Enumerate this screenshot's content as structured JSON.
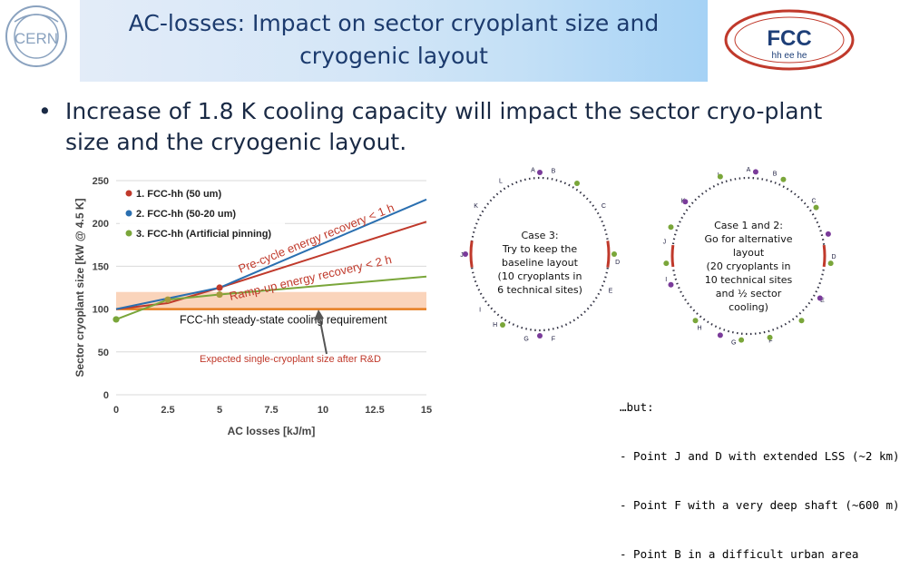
{
  "header": {
    "cern_logo_text": "CERN",
    "title": "AC-losses: Impact on sector cryoplant size and\ncryogenic layout",
    "fcc_logo_main": "FCC",
    "fcc_logo_sub": "hh ee he",
    "colors": {
      "title": "#1c3b6e",
      "fcc_logo": "#1e3f78"
    }
  },
  "bullet": {
    "text": "Increase of 1.8 K cooling capacity will impact the sector cryo-plant size and the cryogenic layout."
  },
  "chart_data": {
    "type": "line",
    "xlabel": "AC losses [kJ/m]",
    "ylabel": "Sector cryoplant size [kW @ 4.5 K]",
    "xlim": [
      0,
      15
    ],
    "ylim": [
      0,
      250
    ],
    "x_ticks": [
      "0",
      "2.5",
      "5",
      "7.5",
      "10",
      "12.5",
      "15"
    ],
    "y_ticks": [
      "0",
      "50",
      "100",
      "150",
      "200",
      "250"
    ],
    "grid": true,
    "legend_position": "top-left",
    "series": [
      {
        "name": "1. FCC-hh (50 um)",
        "color": "#c0392b",
        "x": [
          0,
          2.5,
          5,
          15
        ],
        "y": [
          100,
          107,
          125,
          202
        ]
      },
      {
        "name": "2. FCC-hh (50-20 um)",
        "color": "#2a6fb0",
        "x": [
          0,
          5,
          15
        ],
        "y": [
          100,
          125,
          228
        ]
      },
      {
        "name": "3. FCC-hh (Artificial pinning)",
        "color": "#7aa63a",
        "x": [
          0,
          2.5,
          5,
          15
        ],
        "y": [
          88,
          111,
          117,
          138
        ]
      }
    ],
    "band": {
      "y_range": [
        100,
        120
      ],
      "label": "Expected single-cryoplant size after R&D",
      "color": "#f5b183"
    },
    "reference_line": {
      "y": 100,
      "label": "FCC-hh steady-state cooling requirement"
    },
    "annotations": {
      "pre_cycle": "Pre-cycle energy recovery < 1 h",
      "ramp_up": "Ramp-up energy recovery < 2 h"
    }
  },
  "rings": [
    {
      "id": "case3",
      "label": "Case 3:\nTry to keep the\nbaseline layout\n(10 cryoplants in\n6 technical sites)",
      "sites": [
        "A",
        "B",
        "L",
        "C",
        "K",
        "D",
        "J",
        "E",
        "I",
        "F",
        "G",
        "H"
      ]
    },
    {
      "id": "case12",
      "label": "Case 1 and 2:\nGo for alternative\nlayout\n(20 cryoplants in\n10 technical sites\nand ½ sector\ncooling)",
      "sites": [
        "L",
        "A",
        "B",
        "K",
        "C",
        "J",
        "D",
        "I",
        "E",
        "H",
        "G",
        "F"
      ]
    }
  ],
  "but_block": {
    "lines": [
      "…but:",
      "- Point J and D with extended LSS (~2 km)",
      "- Point F with a very deep shaft (~600 m)",
      "- Point B in a difficult urban area"
    ]
  }
}
